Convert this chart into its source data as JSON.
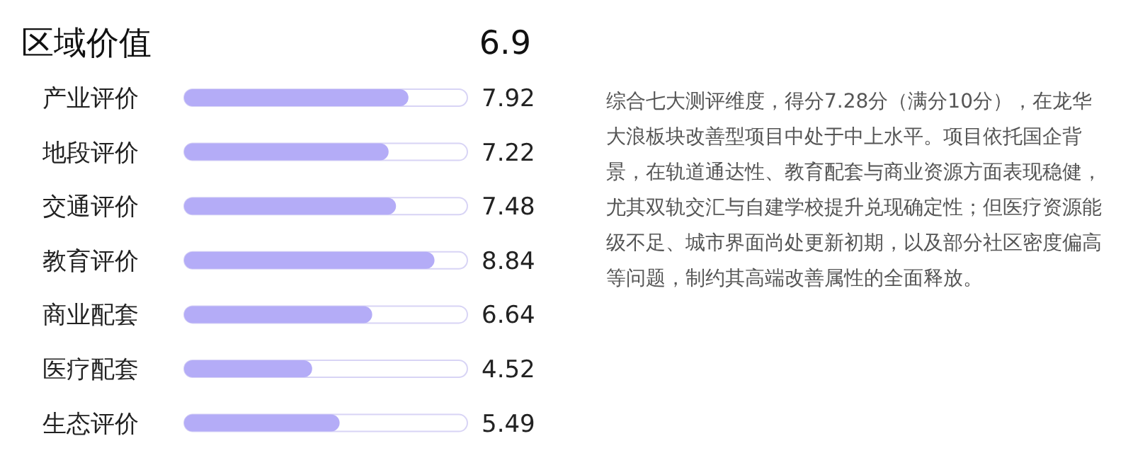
{
  "chart_data": {
    "type": "bar",
    "orientation": "horizontal",
    "title": "区域价值",
    "categories": [
      "产业评价",
      "地段评价",
      "交通评价",
      "教育评价",
      "商业配套",
      "医疗配套",
      "生态评价"
    ],
    "values": [
      7.92,
      7.22,
      7.48,
      8.84,
      6.64,
      4.52,
      5.49
    ],
    "color": "#b4acf7",
    "xlim": [
      0,
      10
    ],
    "tick_labels": "y",
    "data_labels": true,
    "grid": false,
    "legend": false,
    "annotations": [
      "6.9",
      "综合七大测评维度，得分7.28分（满分10分），在龙华大浪板块改善型项目中处于中上水平。项目依托国企背景，在轨道通达性、教育配套与商业资源方面表现稳健，尤其双轨交汇与自建学校提升兑现确定性；但医疗资源能级不足、城市界面尚处更新初期，以及部分社区密度偏高等问题，制约其高端改善属性的全面释放。"
    ]
  }
}
